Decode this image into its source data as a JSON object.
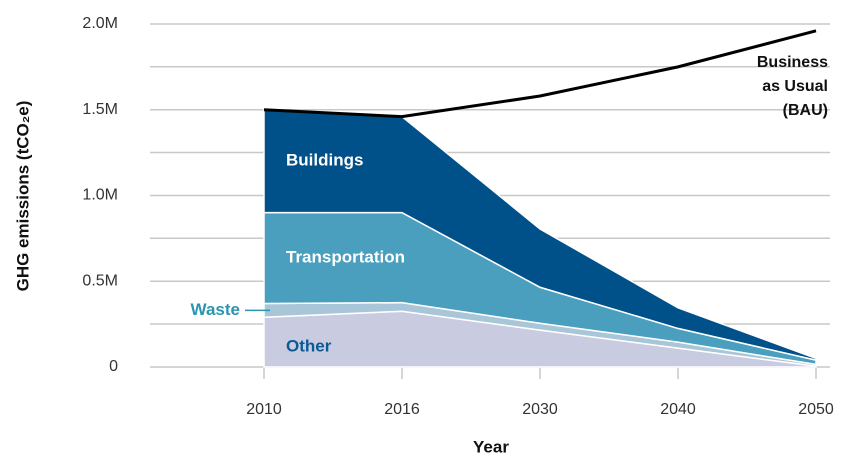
{
  "chart_data": {
    "type": "stacked-area",
    "x_label": "Year",
    "y_label": "GHG emissions (tCO₂e)",
    "categories": [
      "2010",
      "2016",
      "2030",
      "2040",
      "2050"
    ],
    "ylim": [
      0,
      2000000
    ],
    "yticks": [
      0,
      {
        "value": 500000,
        "label": "0.5M"
      },
      {
        "value": 1000000,
        "label": "1.0M"
      },
      {
        "value": 1500000,
        "label": "1.5M"
      },
      {
        "value": 2000000,
        "label": "2.0M"
      }
    ],
    "grid": true,
    "series": [
      {
        "name": "Other",
        "color": "#c9cbe0",
        "label_color": "#0a5a96",
        "values": [
          290000,
          325000,
          215000,
          110000,
          5000
        ]
      },
      {
        "name": "Waste",
        "color": "#a8c6d8",
        "label_color": "#2a95b0",
        "values": [
          80000,
          50000,
          40000,
          35000,
          10000
        ]
      },
      {
        "name": "Transportation",
        "color": "#4a9fbe",
        "label_color": "#ffffff",
        "values": [
          530000,
          525000,
          210000,
          80000,
          25000
        ]
      },
      {
        "name": "Buildings",
        "color": "#00508a",
        "label_color": "#ffffff",
        "values": [
          600000,
          560000,
          340000,
          120000,
          10000
        ]
      }
    ],
    "baseline": {
      "label_lines": [
        "Business",
        "as Usual",
        "(BAU)"
      ],
      "color": "#000000",
      "values": [
        1500000,
        1460000,
        1580000,
        1750000,
        1960000
      ]
    }
  }
}
